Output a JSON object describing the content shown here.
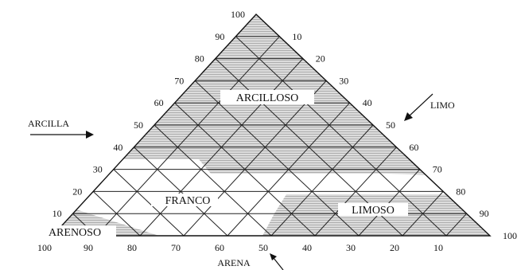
{
  "diagram": {
    "axes": {
      "left": {
        "title": "ARCILLA",
        "ticks": [
          "10",
          "20",
          "30",
          "40",
          "50",
          "60",
          "70",
          "80",
          "90",
          "100"
        ]
      },
      "right": {
        "title": "LIMO",
        "ticks": [
          "10",
          "20",
          "30",
          "40",
          "50",
          "60",
          "70",
          "80",
          "90",
          "100"
        ]
      },
      "bottom": {
        "title": "ARENA",
        "ticks": [
          "100",
          "90",
          "80",
          "70",
          "60",
          "50",
          "40",
          "30",
          "20",
          "10"
        ]
      }
    },
    "zones": {
      "arcilloso": "ARCILLOSO",
      "franco": "FRANCO",
      "limoso": "LIMOSO",
      "arenoso": "ARENOSO"
    },
    "colors": {
      "line": "#222222",
      "hatch": "#9a9a9a",
      "shade": "#d7d7d7"
    }
  }
}
